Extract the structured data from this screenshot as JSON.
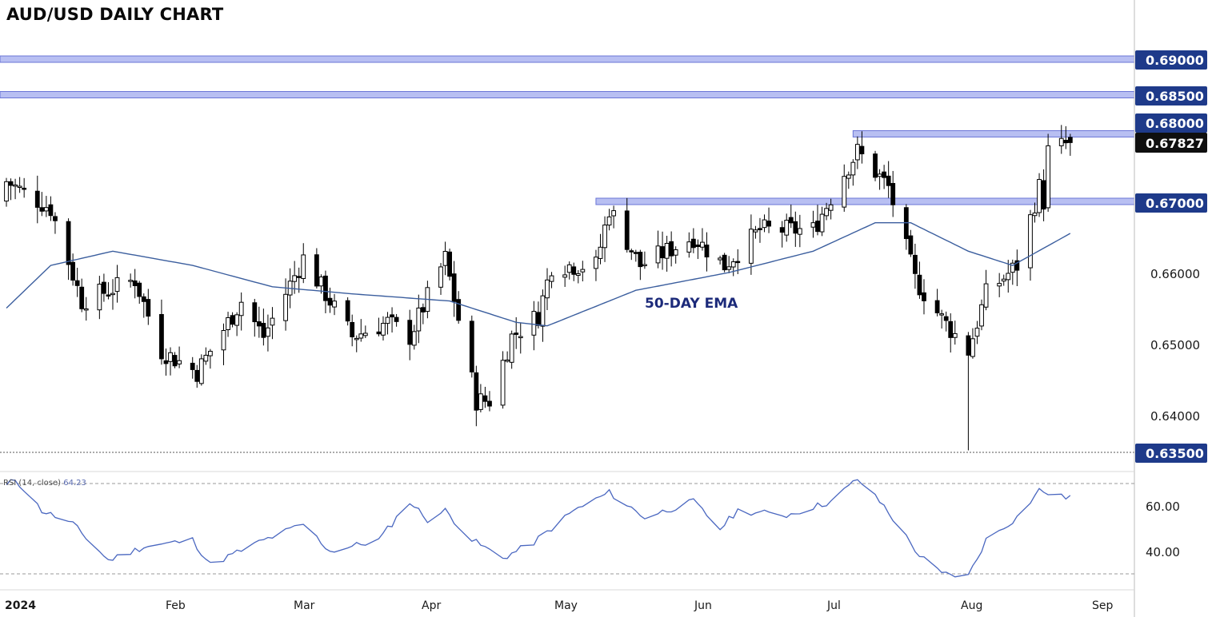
{
  "title": "AUD/USD DAILY CHART",
  "ema_label": "50-DAY EMA",
  "rsi_legend": {
    "label": "RSI (14, close)",
    "value": "64.23"
  },
  "colors": {
    "up_candle": "#ffffff",
    "down_candle": "#000000",
    "wick": "#000000",
    "ema_line": "#3b5e9e",
    "rsi_line": "#4a67c0",
    "level_band": "#b8bff2",
    "level_band_border": "#6a75d6",
    "level_box": "#1e3a8a",
    "current_box": "#0f0f0f"
  },
  "chart_data": [
    {
      "type": "candlestick",
      "title": "AUD/USD DAILY CHART",
      "x_axis": {
        "ticks": [
          "2024",
          "Feb",
          "Mar",
          "Apr",
          "May",
          "Jun",
          "Jul",
          "Aug",
          "Sep"
        ]
      },
      "y_axis": {
        "ticks": [
          "0.64000",
          "0.65000",
          "0.66000"
        ],
        "ylim": [
          0.635,
          0.692
        ]
      },
      "levels": [
        {
          "label": "0.69000",
          "value": 0.69
        },
        {
          "label": "0.68500",
          "value": 0.685
        },
        {
          "label": "0.68000",
          "value": 0.68
        },
        {
          "label": "0.67000",
          "value": 0.67
        },
        {
          "label": "0.63500",
          "value": 0.635
        }
      ],
      "current_price": {
        "label": "0.67827",
        "value": 0.67827
      },
      "resistance_zones": [
        {
          "value": 0.69,
          "from": "2024-01-01",
          "to": "2024-09-06"
        },
        {
          "value": 0.685,
          "from": "2024-01-01",
          "to": "2024-09-06"
        },
        {
          "value": 0.6795,
          "from": "2024-07-10",
          "to": "2024-09-06"
        },
        {
          "value": 0.67,
          "from": "2024-05-13",
          "to": "2024-09-06"
        }
      ],
      "anchors": [
        {
          "date": "2024-01-01",
          "close": 0.6728
        },
        {
          "date": "2024-01-11",
          "close": 0.669
        },
        {
          "date": "2024-01-18",
          "close": 0.656
        },
        {
          "date": "2024-01-30",
          "close": 0.659
        },
        {
          "date": "2024-02-05",
          "close": 0.649
        },
        {
          "date": "2024-02-13",
          "close": 0.646
        },
        {
          "date": "2024-02-23",
          "close": 0.656
        },
        {
          "date": "2024-02-28",
          "close": 0.651
        },
        {
          "date": "2024-03-08",
          "close": 0.662
        },
        {
          "date": "2024-03-19",
          "close": 0.651
        },
        {
          "date": "2024-03-27",
          "close": 0.653
        },
        {
          "date": "2024-04-01",
          "close": 0.651
        },
        {
          "date": "2024-04-09",
          "close": 0.662
        },
        {
          "date": "2024-04-16",
          "close": 0.642
        },
        {
          "date": "2024-04-19",
          "close": 0.642
        },
        {
          "date": "2024-04-24",
          "close": 0.651
        },
        {
          "date": "2024-04-30",
          "close": 0.654
        },
        {
          "date": "2024-05-03",
          "close": 0.661
        },
        {
          "date": "2024-05-13",
          "close": 0.661
        },
        {
          "date": "2024-05-16",
          "close": 0.669
        },
        {
          "date": "2024-05-23",
          "close": 0.661
        },
        {
          "date": "2024-06-04",
          "close": 0.665
        },
        {
          "date": "2024-06-11",
          "close": 0.661
        },
        {
          "date": "2024-06-19",
          "close": 0.666
        },
        {
          "date": "2024-07-01",
          "close": 0.666
        },
        {
          "date": "2024-07-08",
          "close": 0.674
        },
        {
          "date": "2024-07-11",
          "close": 0.677
        },
        {
          "date": "2024-07-18",
          "close": 0.672
        },
        {
          "date": "2024-07-24",
          "close": 0.659
        },
        {
          "date": "2024-07-30",
          "close": 0.6535
        },
        {
          "date": "2024-08-05",
          "close": 0.649
        },
        {
          "date": "2024-08-09",
          "close": 0.657
        },
        {
          "date": "2024-08-16",
          "close": 0.661
        },
        {
          "date": "2024-08-21",
          "close": 0.672
        },
        {
          "date": "2024-08-22",
          "close": 0.67
        },
        {
          "date": "2024-08-23",
          "close": 0.677
        },
        {
          "date": "2024-08-28",
          "close": 0.6783
        }
      ],
      "ema_50": [
        {
          "date": "2024-01-01",
          "value": 0.655
        },
        {
          "date": "2024-01-11",
          "value": 0.661
        },
        {
          "date": "2024-01-25",
          "value": 0.663
        },
        {
          "date": "2024-02-12",
          "value": 0.661
        },
        {
          "date": "2024-03-01",
          "value": 0.658
        },
        {
          "date": "2024-03-19",
          "value": 0.657
        },
        {
          "date": "2024-04-10",
          "value": 0.656
        },
        {
          "date": "2024-04-25",
          "value": 0.653
        },
        {
          "date": "2024-05-02",
          "value": 0.6525
        },
        {
          "date": "2024-05-22",
          "value": 0.6575
        },
        {
          "date": "2024-06-12",
          "value": 0.66
        },
        {
          "date": "2024-07-01",
          "value": 0.663
        },
        {
          "date": "2024-07-15",
          "value": 0.667
        },
        {
          "date": "2024-07-23",
          "value": 0.667
        },
        {
          "date": "2024-08-05",
          "value": 0.663
        },
        {
          "date": "2024-08-15",
          "value": 0.661
        },
        {
          "date": "2024-08-28",
          "value": 0.6655
        }
      ]
    },
    {
      "type": "line",
      "title": "RSI (14, close)",
      "y_axis": {
        "ticks": [
          "40.00",
          "60.00"
        ],
        "ylim": [
          25,
          75
        ]
      },
      "reference_lines": [
        70,
        30
      ],
      "series": [
        {
          "name": "RSI (14, close)",
          "points": [
            {
              "date": "2024-01-01",
              "value": 69
            },
            {
              "date": "2024-01-03",
              "value": 72
            },
            {
              "date": "2024-01-09",
              "value": 58
            },
            {
              "date": "2024-01-16",
              "value": 52
            },
            {
              "date": "2024-01-24",
              "value": 36
            },
            {
              "date": "2024-02-01",
              "value": 42
            },
            {
              "date": "2024-02-12",
              "value": 45
            },
            {
              "date": "2024-02-16",
              "value": 34
            },
            {
              "date": "2024-02-27",
              "value": 44
            },
            {
              "date": "2024-03-08",
              "value": 52
            },
            {
              "date": "2024-03-14",
              "value": 40
            },
            {
              "date": "2024-03-25",
              "value": 45
            },
            {
              "date": "2024-04-01",
              "value": 62
            },
            {
              "date": "2024-04-05",
              "value": 54
            },
            {
              "date": "2024-04-09",
              "value": 58
            },
            {
              "date": "2024-04-15",
              "value": 45
            },
            {
              "date": "2024-04-22",
              "value": 37
            },
            {
              "date": "2024-04-29",
              "value": 44
            },
            {
              "date": "2024-05-08",
              "value": 58
            },
            {
              "date": "2024-05-16",
              "value": 66
            },
            {
              "date": "2024-05-24",
              "value": 55
            },
            {
              "date": "2024-06-04",
              "value": 62
            },
            {
              "date": "2024-06-10",
              "value": 50
            },
            {
              "date": "2024-06-14",
              "value": 58
            },
            {
              "date": "2024-06-25",
              "value": 56
            },
            {
              "date": "2024-07-05",
              "value": 62
            },
            {
              "date": "2024-07-11",
              "value": 72
            },
            {
              "date": "2024-07-17",
              "value": 60
            },
            {
              "date": "2024-07-25",
              "value": 38
            },
            {
              "date": "2024-07-30",
              "value": 30
            },
            {
              "date": "2024-08-05",
              "value": 29
            },
            {
              "date": "2024-08-09",
              "value": 45
            },
            {
              "date": "2024-08-16",
              "value": 55
            },
            {
              "date": "2024-08-21",
              "value": 67
            },
            {
              "date": "2024-08-26",
              "value": 64
            },
            {
              "date": "2024-08-28",
              "value": 64.23
            }
          ]
        }
      ]
    }
  ]
}
